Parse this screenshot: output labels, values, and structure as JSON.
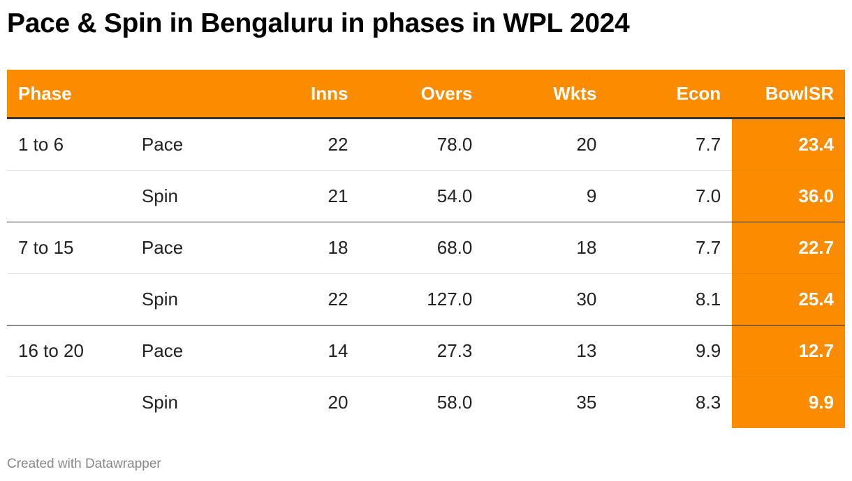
{
  "title": "Pace & Spin in Bengaluru in phases in WPL 2024",
  "columns": [
    "Phase",
    "",
    "Inns",
    "Overs",
    "Wkts",
    "Econ",
    "BowlSR"
  ],
  "rows": [
    [
      "1 to 6",
      "Pace",
      "22",
      "78.0",
      "20",
      "7.7",
      "23.4"
    ],
    [
      "",
      "Spin",
      "21",
      "54.0",
      "9",
      "7.0",
      "36.0"
    ],
    [
      "7 to 15",
      "Pace",
      "18",
      "68.0",
      "18",
      "7.7",
      "22.7"
    ],
    [
      "",
      "Spin",
      "22",
      "127.0",
      "30",
      "8.1",
      "25.4"
    ],
    [
      "16 to 20",
      "Pace",
      "14",
      "27.3",
      "13",
      "9.9",
      "12.7"
    ],
    [
      "",
      "Spin",
      "20",
      "58.0",
      "35",
      "8.3",
      "9.9"
    ]
  ],
  "footer": "Created with Datawrapper",
  "colors": {
    "header": "#fb8c00",
    "highlight": "#fb8c00"
  }
}
